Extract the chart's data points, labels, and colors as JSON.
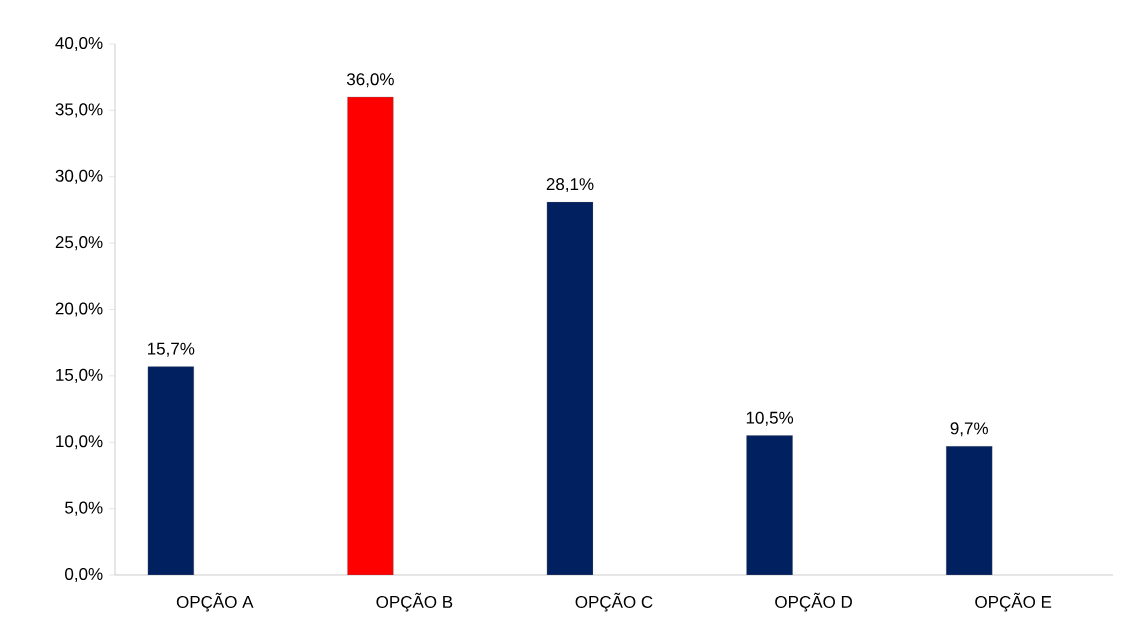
{
  "chart_data": {
    "type": "bar",
    "categories": [
      "OPÇÃO A",
      "OPÇÃO B",
      "OPÇÃO C",
      "OPÇÃO D",
      "OPÇÃO E"
    ],
    "values": [
      15.7,
      36.0,
      28.1,
      10.5,
      9.7
    ],
    "colors": [
      "#002060",
      "#ff0000",
      "#002060",
      "#002060",
      "#002060"
    ],
    "value_labels": [
      "15,7%",
      "36,0%",
      "28,1%",
      "10,5%",
      "9,7%"
    ],
    "ylim": [
      0,
      40
    ],
    "yticks": [
      {
        "value": 0,
        "label": "0,0%"
      },
      {
        "value": 5,
        "label": "5,0%"
      },
      {
        "value": 10,
        "label": "10,0%"
      },
      {
        "value": 15,
        "label": "15,0%"
      },
      {
        "value": 20,
        "label": "20,0%"
      },
      {
        "value": 25,
        "label": "25,0%"
      },
      {
        "value": 30,
        "label": "30,0%"
      },
      {
        "value": 35,
        "label": "35,0%"
      },
      {
        "value": 40,
        "label": "40,0%"
      }
    ],
    "grid": false
  }
}
